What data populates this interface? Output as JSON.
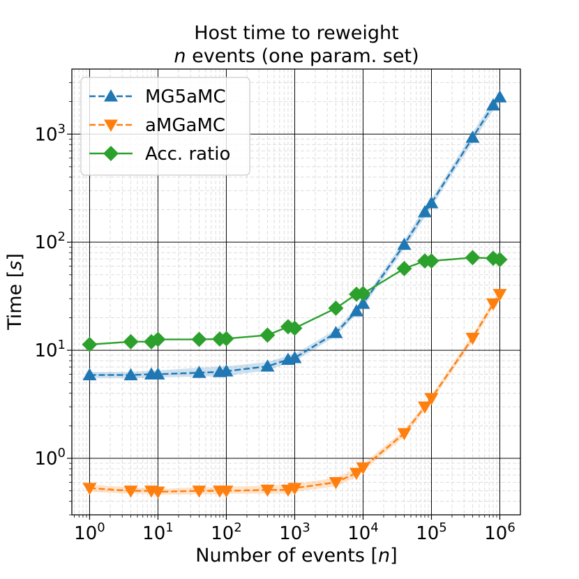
{
  "chart_data": {
    "type": "line",
    "title_line1": "Host time to reweight",
    "title_line2_italic": "n",
    "title_line2_rest": " events (one param. set)",
    "xlabel_prefix": "Number of events [",
    "xlabel_italic": "n",
    "xlabel_suffix": "]",
    "ylabel_prefix": "Time [",
    "ylabel_italic": "s",
    "ylabel_suffix": "]",
    "xscale": "log",
    "yscale": "log",
    "xlim": [
      0.55,
      2000000
    ],
    "ylim": [
      0.3,
      4000
    ],
    "xticks": [
      {
        "base": "10",
        "exp": "0",
        "value": 1
      },
      {
        "base": "10",
        "exp": "1",
        "value": 10
      },
      {
        "base": "10",
        "exp": "2",
        "value": 100
      },
      {
        "base": "10",
        "exp": "3",
        "value": 1000
      },
      {
        "base": "10",
        "exp": "4",
        "value": 10000
      },
      {
        "base": "10",
        "exp": "5",
        "value": 100000
      },
      {
        "base": "10",
        "exp": "6",
        "value": 1000000
      }
    ],
    "yticks": [
      {
        "base": "10",
        "exp": "0",
        "value": 1
      },
      {
        "base": "10",
        "exp": "1",
        "value": 10
      },
      {
        "base": "10",
        "exp": "2",
        "value": 100
      },
      {
        "base": "10",
        "exp": "3",
        "value": 1000
      }
    ],
    "grid": "major solid, minor dashed",
    "legend_position": "top-left",
    "x": [
      1,
      4,
      8,
      10,
      40,
      80,
      100,
      400,
      800,
      1000,
      4000,
      8000,
      10000,
      40000,
      80000,
      100000,
      400000,
      800000,
      1000000
    ],
    "series": [
      {
        "name": "MG5aMC",
        "color": "#1f77b4",
        "linestyle": "dashed",
        "marker": "triangle-up",
        "values": [
          5.9,
          5.9,
          6.0,
          6.0,
          6.2,
          6.3,
          6.4,
          7.1,
          8.2,
          8.5,
          14.5,
          23,
          27,
          95,
          190,
          230,
          930,
          1850,
          2200
        ],
        "band_lower": [
          5.5,
          5.5,
          5.55,
          5.6,
          5.7,
          5.75,
          5.8,
          6.5,
          7.6,
          7.9,
          13.5,
          21.5,
          25,
          87,
          170,
          210,
          840,
          1650,
          1950
        ],
        "band_upper": [
          6.3,
          6.3,
          6.45,
          6.5,
          6.9,
          7.0,
          7.1,
          7.8,
          8.9,
          9.2,
          15.6,
          24.5,
          29,
          104,
          210,
          250,
          1030,
          2050,
          2450
        ]
      },
      {
        "name": "aMGaMC",
        "color": "#ff7f0e",
        "linestyle": "dashed",
        "marker": "triangle-down",
        "values": [
          0.53,
          0.5,
          0.5,
          0.49,
          0.5,
          0.5,
          0.5,
          0.51,
          0.51,
          0.53,
          0.6,
          0.73,
          0.82,
          1.7,
          3.0,
          3.6,
          13,
          27,
          33
        ],
        "band_lower": [
          0.49,
          0.47,
          0.47,
          0.46,
          0.465,
          0.465,
          0.47,
          0.47,
          0.47,
          0.49,
          0.55,
          0.67,
          0.76,
          1.58,
          2.8,
          3.35,
          12,
          25,
          30.5
        ],
        "band_upper": [
          0.57,
          0.54,
          0.53,
          0.52,
          0.54,
          0.54,
          0.545,
          0.56,
          0.57,
          0.58,
          0.66,
          0.8,
          0.89,
          1.83,
          3.2,
          3.85,
          14,
          29,
          35.5
        ]
      },
      {
        "name": "Acc. ratio",
        "color": "#2ca02c",
        "linestyle": "solid",
        "marker": "diamond",
        "values": [
          11.3,
          12.0,
          12.0,
          12.6,
          12.6,
          12.7,
          12.8,
          13.8,
          16.5,
          16.0,
          24.5,
          33,
          33.5,
          57,
          67,
          67,
          72,
          71,
          69
        ]
      }
    ]
  }
}
